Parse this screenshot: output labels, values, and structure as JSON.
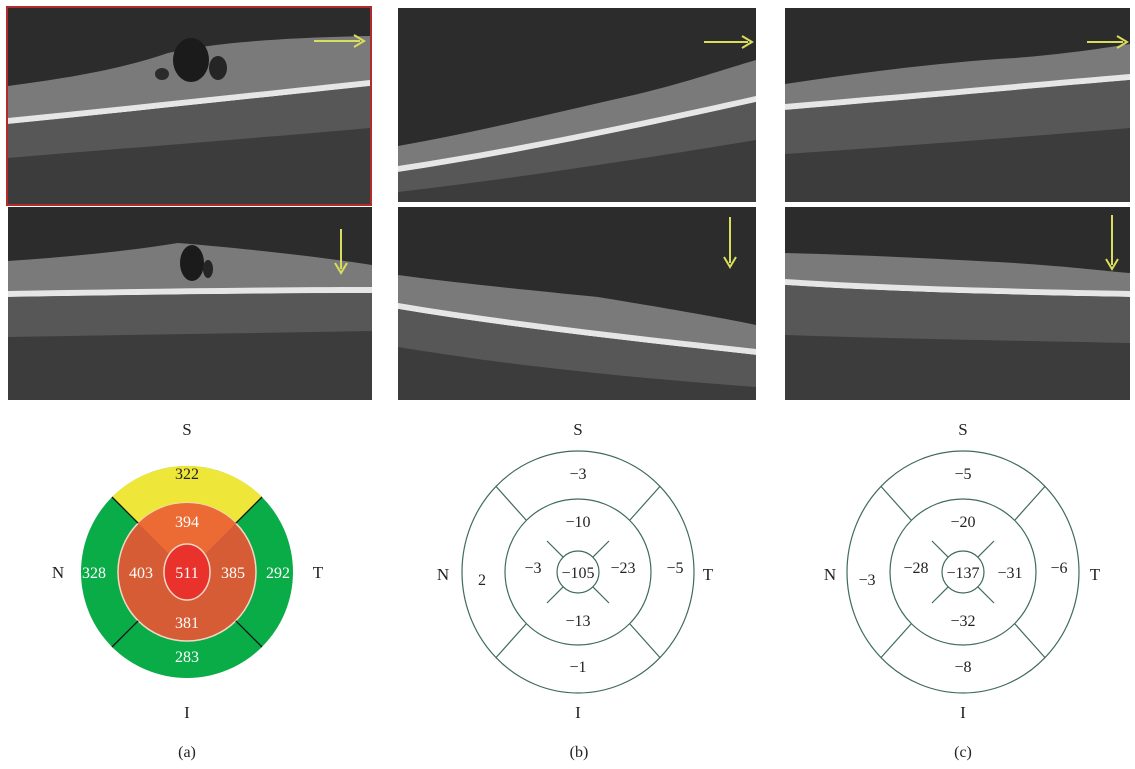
{
  "panels": [
    {
      "caption": "(a)",
      "horizontal_scan": {
        "arrow_direction": "right",
        "highlighted": true
      },
      "vertical_scan": {
        "arrow_direction": "down",
        "highlighted": false
      },
      "thickness_map": {
        "style": "filled",
        "labels": {
          "superior": "S",
          "inferior": "I",
          "nasal": "N",
          "temporal": "T"
        },
        "values": {
          "center": "511",
          "inner_superior": "394",
          "inner_inferior": "381",
          "inner_nasal": "403",
          "inner_temporal": "385",
          "outer_superior": "322",
          "outer_inferior": "283",
          "outer_nasal": "328",
          "outer_temporal": "292"
        },
        "colors": {
          "center": "#e8322b",
          "inner": "#d55c35",
          "inner_superior": "#ec6a33",
          "outer_superior": "#eee73a",
          "outer_other": "#0aac48",
          "divider": "#111111"
        }
      }
    },
    {
      "caption": "(b)",
      "horizontal_scan": {
        "arrow_direction": "right",
        "highlighted": false
      },
      "vertical_scan": {
        "arrow_direction": "down",
        "highlighted": false
      },
      "thickness_map": {
        "style": "outline",
        "labels": {
          "superior": "S",
          "inferior": "I",
          "nasal": "N",
          "temporal": "T"
        },
        "values": {
          "center": "−105",
          "inner_superior": "−10",
          "inner_inferior": "−13",
          "inner_nasal": "−3",
          "inner_temporal": "−23",
          "outer_superior": "−3",
          "outer_inferior": "−1",
          "outer_nasal": "2",
          "outer_temporal": "−5"
        },
        "colors": {
          "line": "#3f6b59"
        }
      }
    },
    {
      "caption": "(c)",
      "horizontal_scan": {
        "arrow_direction": "right",
        "highlighted": false
      },
      "vertical_scan": {
        "arrow_direction": "down",
        "highlighted": false
      },
      "thickness_map": {
        "style": "outline",
        "labels": {
          "superior": "S",
          "inferior": "I",
          "nasal": "N",
          "temporal": "T"
        },
        "values": {
          "center": "−137",
          "inner_superior": "−20",
          "inner_inferior": "−32",
          "inner_nasal": "−28",
          "inner_temporal": "−31",
          "outer_superior": "−5",
          "outer_inferior": "−8",
          "outer_nasal": "−3",
          "outer_temporal": "−6"
        },
        "colors": {
          "line": "#3f6b59"
        }
      }
    }
  ],
  "scan_colors": {
    "background": "#2a2a2a",
    "retina": "#7b7b7b",
    "rpe_band": "#e6e6e6",
    "choroid": "#565656",
    "arrow": "#d9dd5c",
    "highlight_border": "#b22a2a"
  }
}
